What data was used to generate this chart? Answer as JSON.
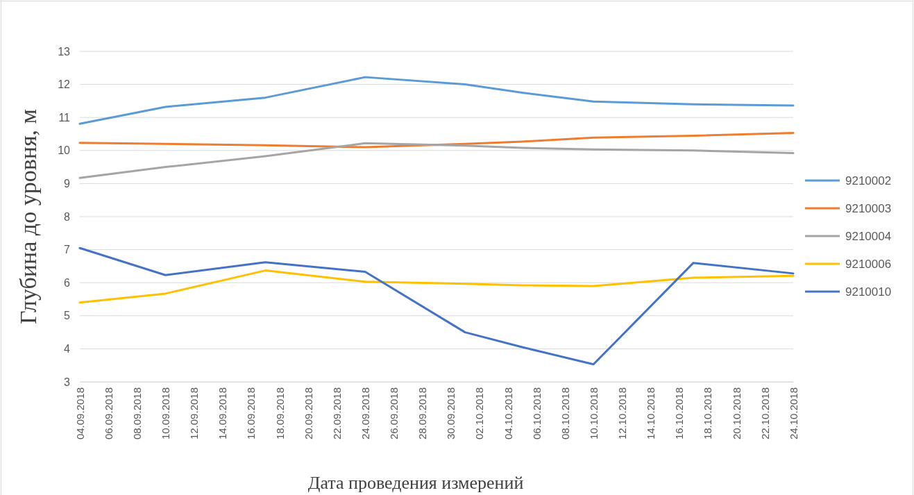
{
  "chart_data": {
    "type": "line",
    "xlabel": "Дата проведения измерений",
    "ylabel": "Глубина до уровня, м",
    "x": [
      "2018-09-04",
      "2018-09-10",
      "2018-09-17",
      "2018-09-24",
      "2018-10-01",
      "2018-10-05",
      "2018-10-10",
      "2018-10-17",
      "2018-10-24"
    ],
    "series": [
      {
        "name": "9210002",
        "color": "#5b9bd5",
        "values": [
          10.81,
          11.32,
          11.6,
          12.22,
          12.0,
          11.75,
          11.48,
          11.4,
          11.36
        ]
      },
      {
        "name": "9210003",
        "color": "#ed7d31",
        "values": [
          10.23,
          10.2,
          10.16,
          10.1,
          10.2,
          10.27,
          10.39,
          10.45,
          10.53
        ]
      },
      {
        "name": "9210004",
        "color": "#a5a5a5",
        "values": [
          9.17,
          9.5,
          9.83,
          10.22,
          10.15,
          10.08,
          10.03,
          10.0,
          9.92
        ]
      },
      {
        "name": "9210006",
        "color": "#ffc000",
        "values": [
          5.4,
          5.67,
          6.37,
          6.03,
          5.97,
          5.92,
          5.9,
          6.15,
          6.21
        ]
      },
      {
        "name": "9210010",
        "color": "#4472c4",
        "values": [
          7.05,
          6.23,
          6.62,
          6.33,
          4.5,
          4.05,
          3.53,
          6.6,
          6.28
        ]
      }
    ],
    "xlim": [
      "2018-09-04",
      "2018-10-24"
    ],
    "xticks": [
      {
        "value": "2018-09-04",
        "label": "04.09.2018"
      },
      {
        "value": "2018-09-06",
        "label": "06.09.2018"
      },
      {
        "value": "2018-09-08",
        "label": "08.09.2018"
      },
      {
        "value": "2018-09-10",
        "label": "10.09.2018"
      },
      {
        "value": "2018-09-12",
        "label": "12.09.2018"
      },
      {
        "value": "2018-09-14",
        "label": "14.09.2018"
      },
      {
        "value": "2018-09-16",
        "label": "16.09.2018"
      },
      {
        "value": "2018-09-18",
        "label": "18.09.2018"
      },
      {
        "value": "2018-09-20",
        "label": "20.09.2018"
      },
      {
        "value": "2018-09-22",
        "label": "22.09.2018"
      },
      {
        "value": "2018-09-24",
        "label": "24.09.2018"
      },
      {
        "value": "2018-09-26",
        "label": "26.09.2018"
      },
      {
        "value": "2018-09-28",
        "label": "28.09.2018"
      },
      {
        "value": "2018-09-30",
        "label": "30.09.2018"
      },
      {
        "value": "2018-10-02",
        "label": "02.10.2018"
      },
      {
        "value": "2018-10-04",
        "label": "04.10.2018"
      },
      {
        "value": "2018-10-06",
        "label": "06.10.2018"
      },
      {
        "value": "2018-10-08",
        "label": "08.10.2018"
      },
      {
        "value": "2018-10-10",
        "label": "10.10.2018"
      },
      {
        "value": "2018-10-12",
        "label": "12.10.2018"
      },
      {
        "value": "2018-10-14",
        "label": "14.10.2018"
      },
      {
        "value": "2018-10-16",
        "label": "16.10.2018"
      },
      {
        "value": "2018-10-18",
        "label": "18.10.2018"
      },
      {
        "value": "2018-10-20",
        "label": "20.10.2018"
      },
      {
        "value": "2018-10-22",
        "label": "22.10.2018"
      },
      {
        "value": "2018-10-24",
        "label": "24.10.2018"
      }
    ],
    "ylim": [
      3,
      13
    ],
    "yticks": [
      3,
      4,
      5,
      6,
      7,
      8,
      9,
      10,
      11,
      12,
      13
    ],
    "grid": "y",
    "legend": "right",
    "marker": "none",
    "line_style": "solid"
  }
}
